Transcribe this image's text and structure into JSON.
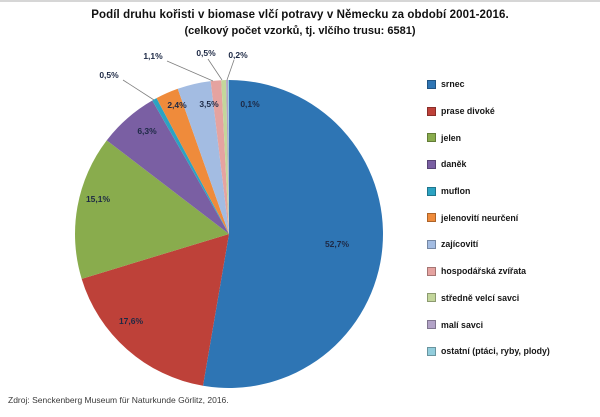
{
  "title": {
    "line1": "Podíl druhu kořisti v biomase vlčí potravy v Německu za období 2001-2016.",
    "line2": "(celkový počet vzorků, tj. vlčího trusu: 6581)"
  },
  "source": "Zdroj: Senckenberg Museum für Naturkunde Görlitz, 2016.",
  "chart_data": {
    "type": "pie",
    "title": "Podíl druhu kořisti v biomase vlčí potravy v Německu za období 2001-2016.",
    "subtitle": "(celkový počet vzorků, tj. vlčího trusu: 6581)",
    "total_samples_shown": "6581",
    "legend_position": "right",
    "direction": "clockwise",
    "start_angle_deg": 0,
    "slices": [
      {
        "label": "srnec",
        "value": 52.7,
        "display": "52,7%",
        "color": "#2E75B4",
        "label_pos": [
          337,
          200
        ]
      },
      {
        "label": "prase divoké",
        "value": 17.6,
        "display": "17,6%",
        "color": "#BE4139",
        "label_pos": [
          131,
          277
        ]
      },
      {
        "label": "jelen",
        "value": 15.1,
        "display": "15,1%",
        "color": "#89AC4D",
        "label_pos": [
          98,
          155
        ]
      },
      {
        "label": "daněk",
        "value": 6.3,
        "display": "6,3%",
        "color": "#7A5FA3",
        "label_pos": [
          147,
          87
        ]
      },
      {
        "label": "muflon",
        "value": 0.5,
        "display": "0,5%",
        "color": "#2CA3C2",
        "label_pos": [
          109,
          31
        ],
        "leader": [
          [
            123,
            36
          ],
          [
            154,
            56
          ]
        ]
      },
      {
        "label": "jelenovití neurčení",
        "value": 2.4,
        "display": "2,4%",
        "color": "#EF8B3B",
        "label_pos": [
          177,
          61
        ]
      },
      {
        "label": "zajícovití",
        "value": 3.5,
        "display": "3,5%",
        "color": "#A3BCE2",
        "label_pos": [
          209,
          60
        ]
      },
      {
        "label": "hospodářská zvířata",
        "value": 1.1,
        "display": "1,1%",
        "color": "#E5A3A0",
        "label_pos": [
          153,
          12
        ],
        "leader": [
          [
            167,
            17
          ],
          [
            213,
            37
          ]
        ]
      },
      {
        "label": "středně velcí savci",
        "value": 0.5,
        "display": "0,5%",
        "color": "#C3D69B",
        "label_pos": [
          206,
          9
        ],
        "leader": [
          [
            208,
            15
          ],
          [
            222,
            36
          ]
        ]
      },
      {
        "label": "malí savci",
        "value": 0.2,
        "display": "0,2%",
        "color": "#B2A2C7",
        "label_pos": [
          238,
          11
        ],
        "leader": [
          [
            234,
            16
          ],
          [
            227,
            36
          ]
        ]
      },
      {
        "label": "ostatní (ptáci, ryby, plody)",
        "value": 0.1,
        "display": "0,1%",
        "color": "#92CDDC",
        "label_pos": [
          250,
          60
        ]
      }
    ]
  }
}
